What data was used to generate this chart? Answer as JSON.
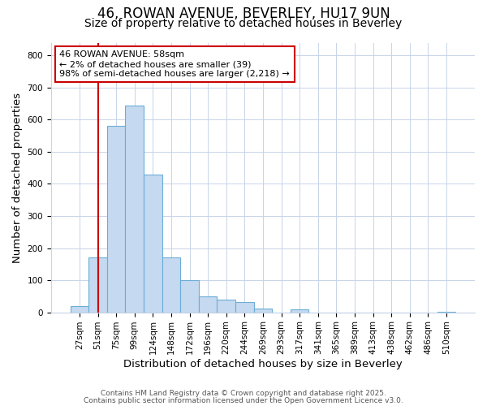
{
  "title1": "46, ROWAN AVENUE, BEVERLEY, HU17 9UN",
  "title2": "Size of property relative to detached houses in Beverley",
  "xlabel": "Distribution of detached houses by size in Beverley",
  "ylabel": "Number of detached properties",
  "categories": [
    "27sqm",
    "51sqm",
    "75sqm",
    "99sqm",
    "124sqm",
    "148sqm",
    "172sqm",
    "196sqm",
    "220sqm",
    "244sqm",
    "269sqm",
    "293sqm",
    "317sqm",
    "341sqm",
    "365sqm",
    "389sqm",
    "413sqm",
    "438sqm",
    "462sqm",
    "486sqm",
    "510sqm"
  ],
  "values": [
    18,
    170,
    580,
    645,
    430,
    172,
    100,
    50,
    40,
    33,
    12,
    0,
    10,
    0,
    0,
    0,
    0,
    0,
    0,
    0,
    2
  ],
  "bar_color": "#c5d9f0",
  "bar_edge_color": "#6baed6",
  "annotation_box_text": "46 ROWAN AVENUE: 58sqm\n← 2% of detached houses are smaller (39)\n98% of semi-detached houses are larger (2,218) →",
  "annotation_box_color": "#ffffff",
  "annotation_box_edge_color": "#cc0000",
  "vline_x_index": 1,
  "vline_color": "#cc0000",
  "ylim": [
    0,
    840
  ],
  "yticks": [
    0,
    100,
    200,
    300,
    400,
    500,
    600,
    700,
    800
  ],
  "footer1": "Contains HM Land Registry data © Crown copyright and database right 2025.",
  "footer2": "Contains public sector information licensed under the Open Government Licence v3.0.",
  "background_color": "#ffffff",
  "plot_bg_color": "#ffffff",
  "title_fontsize": 12,
  "subtitle_fontsize": 10,
  "tick_fontsize": 7.5,
  "label_fontsize": 9.5,
  "footer_fontsize": 6.5
}
